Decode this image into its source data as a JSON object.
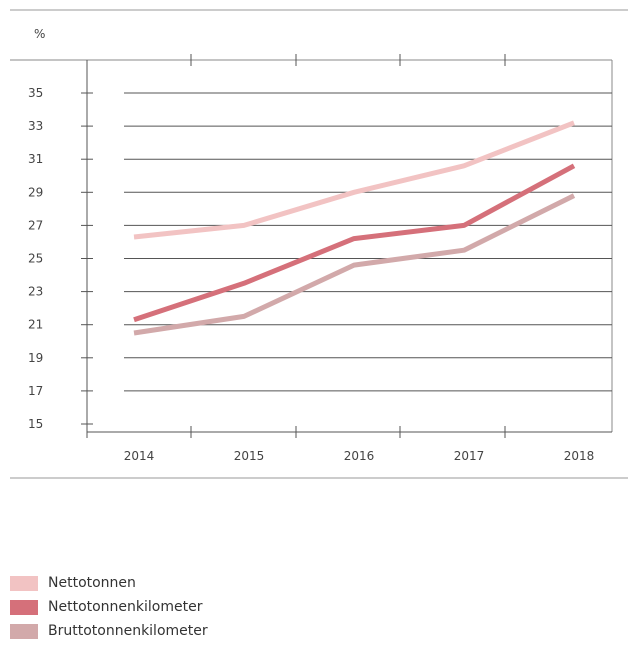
{
  "chart_data": {
    "type": "line",
    "ylabel": "%",
    "categories": [
      "2014",
      "2015",
      "2016",
      "2017",
      "2018"
    ],
    "yticks": [
      15,
      17,
      19,
      21,
      23,
      25,
      27,
      29,
      31,
      33,
      35
    ],
    "ylim": [
      15,
      36
    ],
    "grid": true,
    "legend_placement": "bottom-left",
    "series": [
      {
        "name": "Nettotonnen",
        "color": "#f2c3c3",
        "values": [
          26.3,
          27.0,
          29.0,
          30.6,
          33.2
        ]
      },
      {
        "name": "Nettotonnenkilometer",
        "color": "#d5707a",
        "values": [
          21.3,
          23.5,
          26.2,
          27.0,
          30.6
        ]
      },
      {
        "name": "Bruttotonnenkilometer",
        "color": "#d2a9aa",
        "values": [
          20.5,
          21.5,
          24.6,
          25.5,
          28.8
        ]
      }
    ]
  }
}
